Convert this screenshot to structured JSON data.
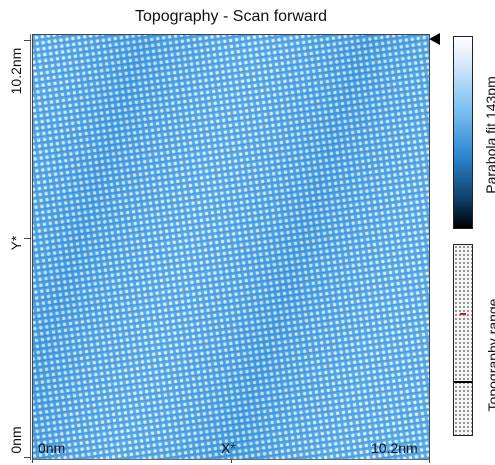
{
  "title": "Topography - Scan forward",
  "y_axis": {
    "top_label": "10.2nm",
    "mid_label": "Y*",
    "bottom_label": "0nm"
  },
  "x_axis": {
    "left_label": "0nm",
    "mid_label": "X*",
    "right_label": "10.2nm"
  },
  "colorbar": {
    "label": "Parabola fit 143pm"
  },
  "range_bar": {
    "label": "Topography range"
  },
  "colors": {
    "scan_base": "#4fa8ea",
    "scan_light": "#d6ecfc",
    "scan_dark": "#1f77c4"
  }
}
